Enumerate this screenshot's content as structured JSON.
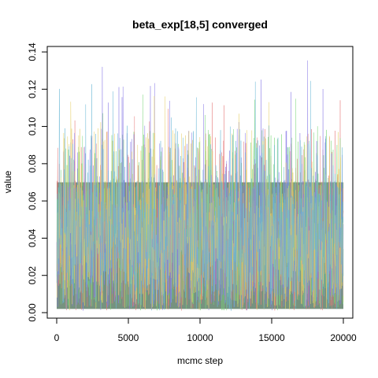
{
  "chart_data": {
    "type": "line",
    "title": "beta_exp[18,5] converged",
    "xlabel": "mcmc step",
    "ylabel": "value",
    "xlim": [
      0,
      20000
    ],
    "ylim": [
      0.0,
      0.14
    ],
    "x_ticks": [
      0,
      5000,
      10000,
      15000,
      20000
    ],
    "y_ticks": [
      "0.00",
      "0.02",
      "0.04",
      "0.06",
      "0.08",
      "0.10",
      "0.12",
      "0.14"
    ],
    "grid": false,
    "legend": "none",
    "n_steps": 20000,
    "series": [
      {
        "color": "#e67a7a",
        "mean": 0.036,
        "typical_range": [
          0.0,
          0.09
        ],
        "max": 0.131
      },
      {
        "color": "#7ad67a",
        "mean": 0.036,
        "typical_range": [
          0.0,
          0.09
        ],
        "max": 0.127
      },
      {
        "color": "#8a7ae6",
        "mean": 0.036,
        "typical_range": [
          0.0,
          0.09
        ],
        "max": 0.138
      },
      {
        "color": "#e6d06a",
        "mean": 0.036,
        "typical_range": [
          0.0,
          0.09
        ],
        "max": 0.118
      },
      {
        "color": "#6ab8d6",
        "mean": 0.036,
        "typical_range": [
          0.0,
          0.09
        ],
        "max": 0.125
      }
    ],
    "overlap_color": "#76927f"
  }
}
